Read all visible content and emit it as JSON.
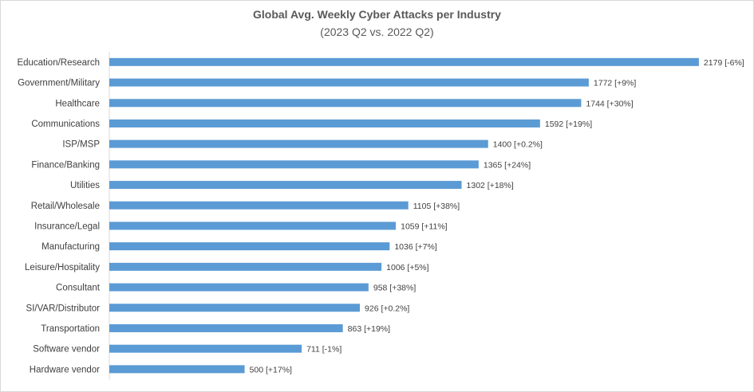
{
  "chart_data": {
    "type": "bar",
    "orientation": "horizontal",
    "title": "Global Avg. Weekly Cyber Attacks per Industry",
    "subtitle": "(2023 Q2 vs. 2022 Q2)",
    "categories": [
      "Education/Research",
      "Government/Military",
      "Healthcare",
      "Communications",
      "ISP/MSP",
      "Finance/Banking",
      "Utilities",
      "Retail/Wholesale",
      "Insurance/Legal",
      "Manufacturing",
      "Leisure/Hospitality",
      "Consultant",
      "SI/VAR/Distributor",
      "Transportation",
      "Software vendor",
      "Hardware vendor"
    ],
    "values": [
      2179,
      1772,
      1744,
      1592,
      1400,
      1365,
      1302,
      1105,
      1059,
      1036,
      1006,
      958,
      926,
      863,
      711,
      500
    ],
    "data_labels": [
      "2179 [-6%]",
      "1772 [+9%]",
      "1744 [+30%]",
      "1592 [+19%]",
      "1400 [+0.2%]",
      "1365 [+24%]",
      "1302 [+18%]",
      "1105 [+38%]",
      "1059 [+11%]",
      "1036 [+7%]",
      "1006 [+5%]",
      "958 [+38%]",
      "926 [+0.2%]",
      "863 [+19%]",
      "711 [-1%]",
      "500 [+17%]"
    ],
    "xlim": [
      0,
      2250
    ],
    "bar_color": "#5b9bd5",
    "grid": false,
    "legend": "none"
  }
}
